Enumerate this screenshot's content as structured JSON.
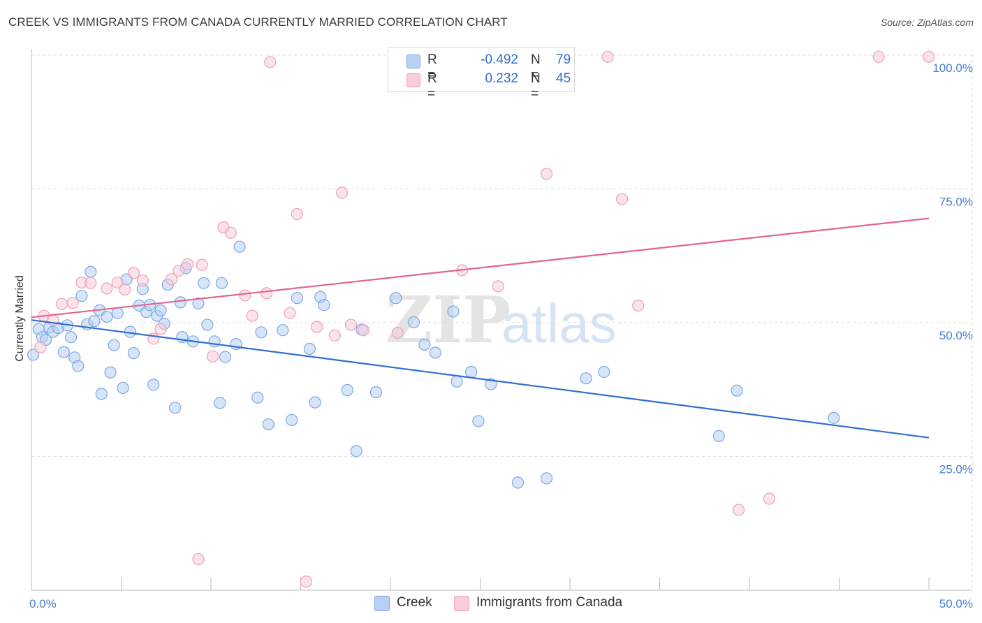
{
  "title": "CREEK VS IMMIGRANTS FROM CANADA CURRENTLY MARRIED CORRELATION CHART",
  "source": "Source: ZipAtlas.com",
  "watermark": {
    "zip": "ZIP",
    "atlas": "atlas"
  },
  "legend": {
    "r_label": "R =",
    "n_label": "N =",
    "rows": [
      {
        "r": "-0.492",
        "n": "79"
      },
      {
        "r": "0.232",
        "n": "45"
      }
    ]
  },
  "chart_data": {
    "type": "scatter",
    "ylabel": "Currently Married",
    "x_range": [
      0,
      50
    ],
    "y_range": [
      0,
      102
    ],
    "x_tick_labels": {
      "left": "0.0%",
      "right": "50.0%"
    },
    "y_ticks": [
      {
        "value": 25,
        "label": "25.0%"
      },
      {
        "value": 50,
        "label": "50.0%"
      },
      {
        "value": 75,
        "label": "75.0%"
      },
      {
        "value": 100,
        "label": "100.0%"
      }
    ],
    "grid": true,
    "series": [
      {
        "name": "Creek",
        "color": "#7aa8e6",
        "fill": "#b8d0f2",
        "trend_color": "#2f6fd0",
        "trend": [
          [
            0,
            50.5
          ],
          [
            50,
            28.5
          ]
        ],
        "points": [
          [
            0.1,
            44.0
          ],
          [
            0.4,
            48.8
          ],
          [
            0.6,
            47.3
          ],
          [
            0.8,
            46.8
          ],
          [
            1.0,
            49.1
          ],
          [
            1.2,
            48.3
          ],
          [
            1.5,
            49.0
          ],
          [
            1.8,
            44.5
          ],
          [
            2.0,
            49.5
          ],
          [
            2.2,
            47.3
          ],
          [
            2.4,
            43.5
          ],
          [
            2.6,
            41.9
          ],
          [
            2.8,
            55.0
          ],
          [
            3.1,
            49.7
          ],
          [
            3.3,
            59.5
          ],
          [
            3.5,
            50.3
          ],
          [
            3.8,
            52.3
          ],
          [
            3.9,
            36.7
          ],
          [
            4.2,
            51.1
          ],
          [
            4.4,
            40.7
          ],
          [
            4.6,
            45.8
          ],
          [
            4.8,
            51.8
          ],
          [
            5.1,
            37.8
          ],
          [
            5.3,
            58.1
          ],
          [
            5.5,
            48.3
          ],
          [
            5.7,
            44.3
          ],
          [
            6.0,
            53.2
          ],
          [
            6.2,
            56.3
          ],
          [
            6.4,
            52.0
          ],
          [
            6.6,
            53.3
          ],
          [
            6.8,
            38.4
          ],
          [
            7.0,
            51.3
          ],
          [
            7.2,
            52.3
          ],
          [
            7.4,
            49.8
          ],
          [
            7.6,
            57.1
          ],
          [
            8.0,
            34.1
          ],
          [
            8.3,
            53.8
          ],
          [
            8.4,
            47.3
          ],
          [
            8.6,
            60.2
          ],
          [
            9.0,
            46.5
          ],
          [
            9.3,
            53.6
          ],
          [
            9.6,
            57.4
          ],
          [
            9.8,
            49.6
          ],
          [
            10.2,
            46.5
          ],
          [
            10.5,
            35.0
          ],
          [
            10.6,
            57.4
          ],
          [
            10.8,
            43.6
          ],
          [
            11.4,
            46.0
          ],
          [
            11.6,
            64.2
          ],
          [
            12.6,
            36.0
          ],
          [
            12.8,
            48.2
          ],
          [
            13.2,
            31.0
          ],
          [
            14.0,
            48.6
          ],
          [
            14.5,
            31.8
          ],
          [
            14.8,
            54.6
          ],
          [
            15.5,
            45.1
          ],
          [
            15.8,
            35.1
          ],
          [
            16.1,
            54.8
          ],
          [
            16.3,
            53.3
          ],
          [
            17.6,
            37.4
          ],
          [
            18.1,
            26.0
          ],
          [
            18.4,
            48.7
          ],
          [
            19.2,
            37.0
          ],
          [
            20.3,
            54.6
          ],
          [
            21.3,
            50.1
          ],
          [
            21.9,
            45.9
          ],
          [
            22.5,
            44.4
          ],
          [
            23.5,
            52.1
          ],
          [
            23.7,
            39.0
          ],
          [
            24.5,
            40.8
          ],
          [
            24.9,
            31.6
          ],
          [
            25.6,
            38.5
          ],
          [
            27.1,
            20.1
          ],
          [
            28.7,
            20.9
          ],
          [
            30.9,
            39.6
          ],
          [
            31.9,
            40.8
          ],
          [
            38.3,
            28.8
          ],
          [
            39.3,
            37.3
          ],
          [
            44.7,
            32.2
          ]
        ]
      },
      {
        "name": "Immigrants from Canada",
        "color": "#f0a0b8",
        "fill": "#f8ccd8",
        "trend_color": "#e0668e",
        "trend": [
          [
            0,
            51.0
          ],
          [
            50,
            69.5
          ]
        ],
        "points": [
          [
            0.5,
            45.4
          ],
          [
            0.7,
            51.3
          ],
          [
            1.2,
            50.5
          ],
          [
            1.7,
            53.5
          ],
          [
            2.3,
            53.7
          ],
          [
            2.8,
            57.5
          ],
          [
            3.3,
            57.4
          ],
          [
            4.2,
            56.4
          ],
          [
            4.8,
            57.5
          ],
          [
            5.2,
            56.2
          ],
          [
            5.7,
            59.3
          ],
          [
            6.2,
            57.9
          ],
          [
            6.8,
            47.0
          ],
          [
            7.2,
            48.8
          ],
          [
            7.8,
            58.1
          ],
          [
            8.2,
            59.7
          ],
          [
            8.7,
            60.9
          ],
          [
            9.3,
            5.8
          ],
          [
            9.5,
            60.8
          ],
          [
            10.1,
            43.7
          ],
          [
            10.7,
            67.8
          ],
          [
            11.1,
            66.8
          ],
          [
            11.9,
            55.1
          ],
          [
            12.3,
            51.3
          ],
          [
            13.1,
            55.5
          ],
          [
            13.3,
            98.7
          ],
          [
            14.4,
            51.8
          ],
          [
            14.8,
            70.3
          ],
          [
            15.3,
            1.6
          ],
          [
            15.9,
            49.2
          ],
          [
            16.9,
            47.6
          ],
          [
            17.3,
            74.3
          ],
          [
            17.8,
            49.6
          ],
          [
            18.5,
            48.6
          ],
          [
            20.4,
            48.1
          ],
          [
            24.0,
            59.8
          ],
          [
            26.0,
            56.8
          ],
          [
            28.7,
            77.8
          ],
          [
            32.1,
            99.7
          ],
          [
            32.9,
            73.1
          ],
          [
            33.8,
            53.2
          ],
          [
            39.4,
            15.0
          ],
          [
            41.1,
            17.1
          ],
          [
            47.2,
            99.7
          ],
          [
            50.0,
            99.7
          ]
        ]
      }
    ]
  }
}
